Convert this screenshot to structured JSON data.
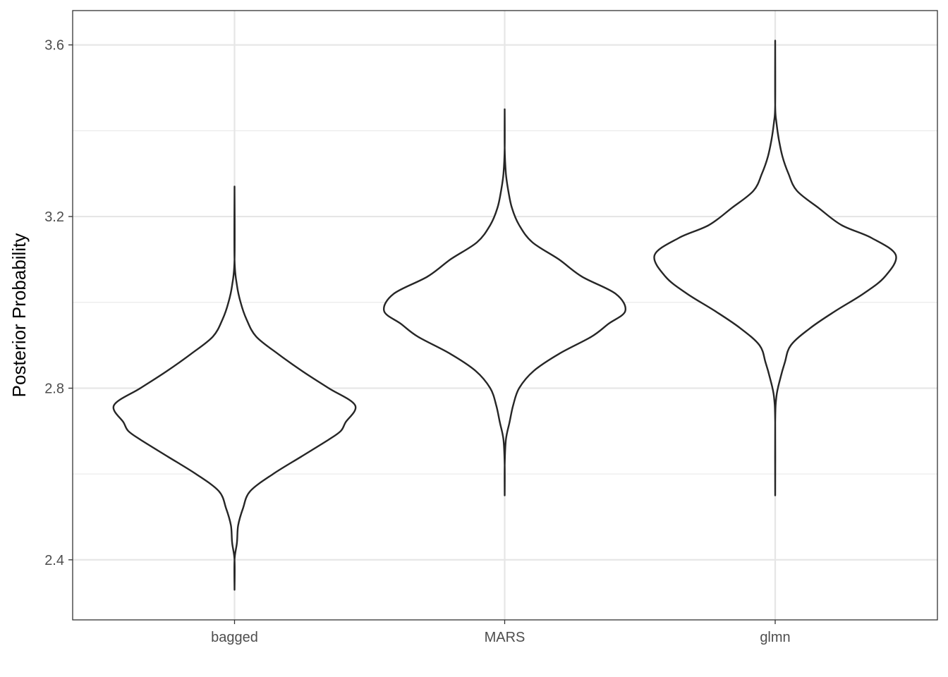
{
  "chart_data": {
    "type": "violin",
    "title": "",
    "xlabel": "",
    "ylabel": "Posterior Probability",
    "categories": [
      "bagged",
      "MARS",
      "glmn"
    ],
    "y_ticks": [
      "2.4",
      "2.8",
      "3.2",
      "3.6"
    ],
    "ylim": [
      2.26,
      3.68
    ],
    "grid": true,
    "legend": "none",
    "colors": {
      "outline": "#262626",
      "grid": "#e6e6e6",
      "panel_border": "#333333",
      "tick_text": "#4d4d4d"
    },
    "series": [
      {
        "category": "bagged",
        "density": [
          [
            2.33,
            0.0
          ],
          [
            2.4,
            0.0
          ],
          [
            2.44,
            0.02
          ],
          [
            2.48,
            0.03
          ],
          [
            2.52,
            0.07
          ],
          [
            2.56,
            0.13
          ],
          [
            2.6,
            0.32
          ],
          [
            2.64,
            0.55
          ],
          [
            2.68,
            0.78
          ],
          [
            2.7,
            0.88
          ],
          [
            2.72,
            0.92
          ],
          [
            2.76,
            1.0
          ],
          [
            2.8,
            0.78
          ],
          [
            2.84,
            0.56
          ],
          [
            2.88,
            0.36
          ],
          [
            2.92,
            0.18
          ],
          [
            2.96,
            0.1
          ],
          [
            3.0,
            0.05
          ],
          [
            3.04,
            0.02
          ],
          [
            3.1,
            0.0
          ],
          [
            3.27,
            0.0
          ]
        ]
      },
      {
        "category": "MARS",
        "density": [
          [
            2.55,
            0.0
          ],
          [
            2.62,
            0.0
          ],
          [
            2.68,
            0.01
          ],
          [
            2.72,
            0.04
          ],
          [
            2.76,
            0.07
          ],
          [
            2.8,
            0.12
          ],
          [
            2.84,
            0.24
          ],
          [
            2.88,
            0.45
          ],
          [
            2.92,
            0.72
          ],
          [
            2.95,
            0.86
          ],
          [
            2.98,
            1.0
          ],
          [
            3.02,
            0.92
          ],
          [
            3.06,
            0.64
          ],
          [
            3.1,
            0.45
          ],
          [
            3.14,
            0.23
          ],
          [
            3.18,
            0.12
          ],
          [
            3.22,
            0.06
          ],
          [
            3.26,
            0.03
          ],
          [
            3.3,
            0.01
          ],
          [
            3.36,
            0.0
          ],
          [
            3.45,
            0.0
          ]
        ]
      },
      {
        "category": "glmn",
        "density": [
          [
            2.55,
            0.0
          ],
          [
            2.72,
            0.0
          ],
          [
            2.78,
            0.01
          ],
          [
            2.82,
            0.04
          ],
          [
            2.86,
            0.08
          ],
          [
            2.9,
            0.13
          ],
          [
            2.94,
            0.29
          ],
          [
            2.98,
            0.5
          ],
          [
            3.02,
            0.73
          ],
          [
            3.06,
            0.91
          ],
          [
            3.11,
            1.0
          ],
          [
            3.15,
            0.8
          ],
          [
            3.18,
            0.55
          ],
          [
            3.22,
            0.36
          ],
          [
            3.26,
            0.18
          ],
          [
            3.3,
            0.11
          ],
          [
            3.34,
            0.06
          ],
          [
            3.38,
            0.03
          ],
          [
            3.42,
            0.01
          ],
          [
            3.46,
            0.0
          ],
          [
            3.61,
            0.0
          ]
        ]
      }
    ]
  }
}
